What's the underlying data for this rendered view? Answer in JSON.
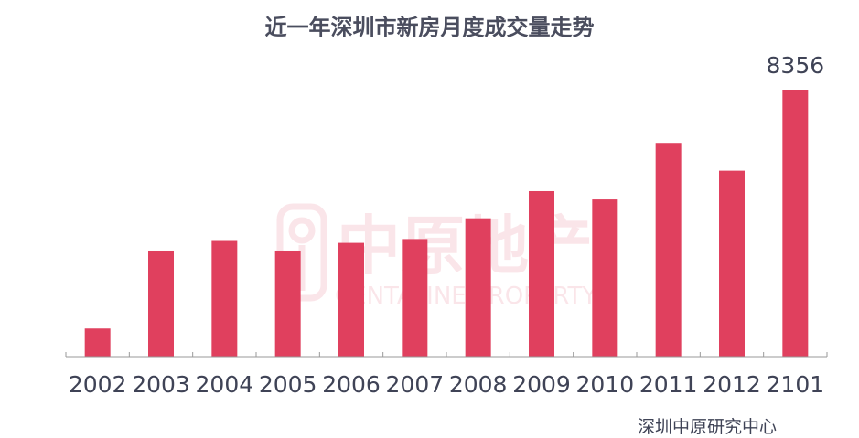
{
  "chart_data": {
    "type": "bar",
    "title": "近一年深圳市新房月度成交量走势",
    "categories": [
      "2002",
      "2003",
      "2004",
      "2005",
      "2006",
      "2007",
      "2008",
      "2009",
      "2010",
      "2011",
      "2012",
      "2101"
    ],
    "values": [
      880,
      3320,
      3620,
      3320,
      3560,
      3680,
      4330,
      5180,
      4920,
      6690,
      5820,
      8356
    ],
    "data_labels": [
      {
        "index": 11,
        "text": "8356"
      }
    ],
    "xlabel": "",
    "ylabel": "",
    "ylim": [
      0,
      9200
    ],
    "grid": false,
    "legend": "none",
    "bar_color": "#e0405e",
    "source": "深圳中原研究中心",
    "watermark": {
      "cn": "中原地产",
      "en": "CENTALINE PROPERTY"
    }
  }
}
